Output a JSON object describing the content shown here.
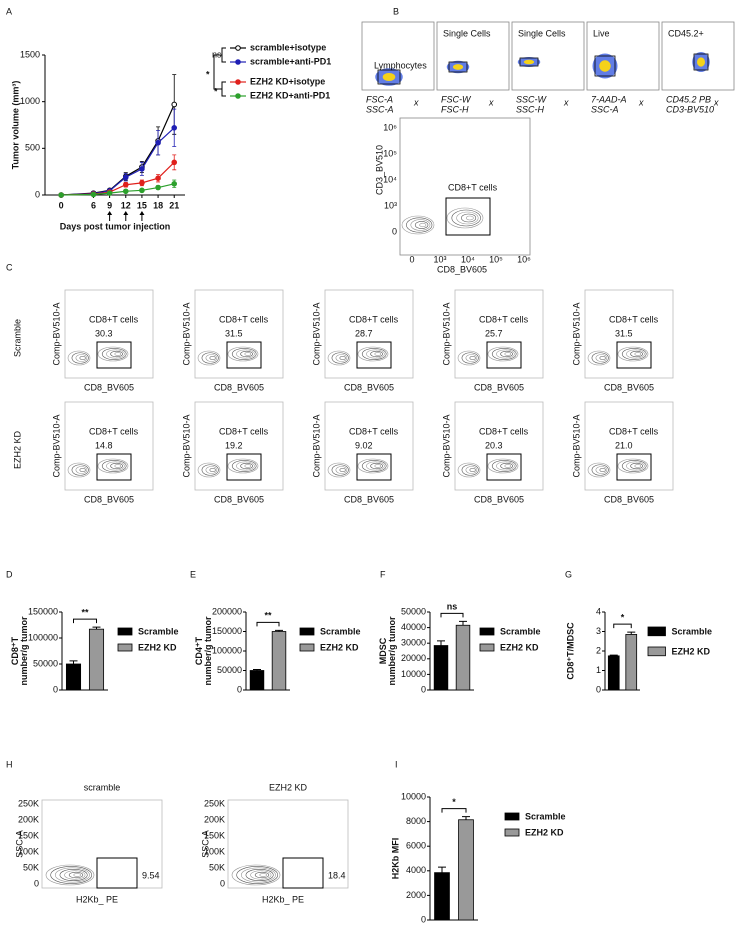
{
  "panel_letters": [
    "A",
    "B",
    "C",
    "D",
    "E",
    "F",
    "G",
    "H",
    "I"
  ],
  "chart_data": [
    {
      "type": "line",
      "xlabel": "Days post tumor injection",
      "ylabel": "Tumor volume (mm³)",
      "x": [
        0,
        6,
        9,
        12,
        15,
        18,
        21
      ],
      "xlim": [
        -3,
        23
      ],
      "xticks": [
        0,
        6,
        9,
        12,
        15,
        18,
        21
      ],
      "ylim": [
        0,
        1500
      ],
      "yticks": [
        0,
        500,
        1000,
        1500
      ],
      "series": [
        {
          "name": "scramble+isotype",
          "color": "#000000",
          "marker": "open",
          "values": [
            0,
            20,
            50,
            200,
            300,
            580,
            970
          ],
          "errors": [
            0,
            5,
            10,
            40,
            60,
            150,
            320
          ]
        },
        {
          "name": "scramble+anti-PD1",
          "color": "#1f1fb4",
          "marker": "filled",
          "values": [
            0,
            15,
            45,
            190,
            280,
            560,
            720
          ],
          "errors": [
            0,
            5,
            10,
            40,
            70,
            130,
            200
          ]
        },
        {
          "name": "EZH2 KD+isotype",
          "color": "#e0201c",
          "marker": "filled",
          "values": [
            0,
            10,
            30,
            110,
            130,
            180,
            350
          ],
          "errors": [
            0,
            3,
            8,
            25,
            30,
            40,
            80
          ]
        },
        {
          "name": "EZH2 KD+anti-PD1",
          "color": "#2ca02c",
          "marker": "filled",
          "values": [
            0,
            5,
            20,
            40,
            50,
            80,
            120
          ],
          "errors": [
            0,
            2,
            5,
            10,
            15,
            20,
            40
          ]
        }
      ],
      "annotations": [
        "ns",
        "*",
        "*"
      ]
    },
    {
      "type": "bar",
      "categories": [
        "Scramble",
        "EZH2 KD"
      ],
      "colors": [
        "#000000",
        "#999999"
      ],
      "values": [
        50000,
        117000
      ],
      "errors": [
        6000,
        4000
      ],
      "ylim": [
        0,
        150000
      ],
      "yticks": [
        0,
        50000,
        100000,
        150000
      ],
      "ylabel": [
        "CD8⁺T",
        "number/g tumor"
      ],
      "significance": "**"
    },
    {
      "type": "bar",
      "categories": [
        "Scramble",
        "EZH2 KD"
      ],
      "colors": [
        "#000000",
        "#999999"
      ],
      "values": [
        50000,
        150000
      ],
      "errors": [
        2500,
        3000
      ],
      "ylim": [
        0,
        200000
      ],
      "yticks": [
        0,
        50000,
        100000,
        150000,
        200000
      ],
      "ylabel": [
        "CD4⁺T",
        "number/g tumor"
      ],
      "significance": "**"
    },
    {
      "type": "bar",
      "categories": [
        "Scramble",
        "EZH2 KD"
      ],
      "colors": [
        "#000000",
        "#999999"
      ],
      "values": [
        28500,
        41500
      ],
      "errors": [
        3000,
        2500
      ],
      "ylim": [
        0,
        50000
      ],
      "yticks": [
        0,
        10000,
        20000,
        30000,
        40000,
        50000
      ],
      "ylabel": [
        "MDSC",
        "number/g tumor"
      ],
      "significance": "ns"
    },
    {
      "type": "bar",
      "categories": [
        "Scramble",
        "EZH2 KD"
      ],
      "colors": [
        "#000000",
        "#999999"
      ],
      "values": [
        1.75,
        2.85
      ],
      "errors": [
        0.04,
        0.12
      ],
      "ylim": [
        0,
        4
      ],
      "yticks": [
        0,
        1,
        2,
        3,
        4
      ],
      "ylabel": [
        "CD8⁺T/MDSC"
      ],
      "significance": "*"
    },
    {
      "type": "bar",
      "categories": [
        "Scramble",
        "EZH2 KD"
      ],
      "colors": [
        "#000000",
        "#999999"
      ],
      "values": [
        3850,
        8150
      ],
      "errors": [
        450,
        250
      ],
      "ylim": [
        0,
        10000
      ],
      "yticks": [
        0,
        2000,
        4000,
        6000,
        8000,
        10000
      ],
      "ylabel": [
        "H2Kb MFI"
      ],
      "significance": "*"
    }
  ],
  "gating": {
    "separator": "x",
    "plots": [
      {
        "gate": "Lymphocytes",
        "x_label": "FSC-A",
        "y_label": "SSC-A"
      },
      {
        "gate": "Single Cells",
        "x_label": "FSC-W",
        "y_label": "FSC-H"
      },
      {
        "gate": "Single Cells",
        "x_label": "SSC-W",
        "y_label": "SSC-H"
      },
      {
        "gate": "Live",
        "x_label": "7-AAD-A",
        "y_label": "SSC-A"
      },
      {
        "gate": "CD45.2+",
        "x_label": "CD45.2 PB",
        "y_label": "CD3-BV510"
      }
    ],
    "main": {
      "ylabel": "CD3_BV510",
      "xlabel": "CD8_BV605",
      "gate": "CD8+T cells",
      "xtick_labels": [
        "0",
        "10³",
        "10⁴",
        "10⁵",
        "10⁶"
      ],
      "ytick_labels": [
        "0",
        "10³",
        "10⁴",
        "10⁵",
        "10⁶"
      ]
    }
  },
  "cd8_gating": {
    "ylabel": "Comp-BV510-A",
    "xlabel": "CD8_BV605",
    "gate": "CD8+T cells",
    "rows": [
      {
        "name": "Scramble",
        "values": [
          30.3,
          31.5,
          28.7,
          25.7,
          31.5
        ],
        "value_labels": [
          "30.3",
          "31.5",
          "28.7",
          "25.7",
          "31.5"
        ]
      },
      {
        "name": "EZH2 KD",
        "values": [
          14.8,
          19.2,
          9.02,
          20.3,
          21.0
        ],
        "value_labels": [
          "14.8",
          "19.2",
          "9.02",
          "20.3",
          "21.0"
        ]
      }
    ]
  },
  "h2kb": {
    "ylabel": "SSC-A",
    "xlabel": "H2Kb_ PE",
    "ytick_labels": [
      "250K",
      "200K",
      "150K",
      "100K",
      "50K",
      "0"
    ],
    "plots": [
      {
        "title": "scramble",
        "value": 9.54
      },
      {
        "title": "EZH2 KD",
        "value": 18.4
      }
    ]
  }
}
